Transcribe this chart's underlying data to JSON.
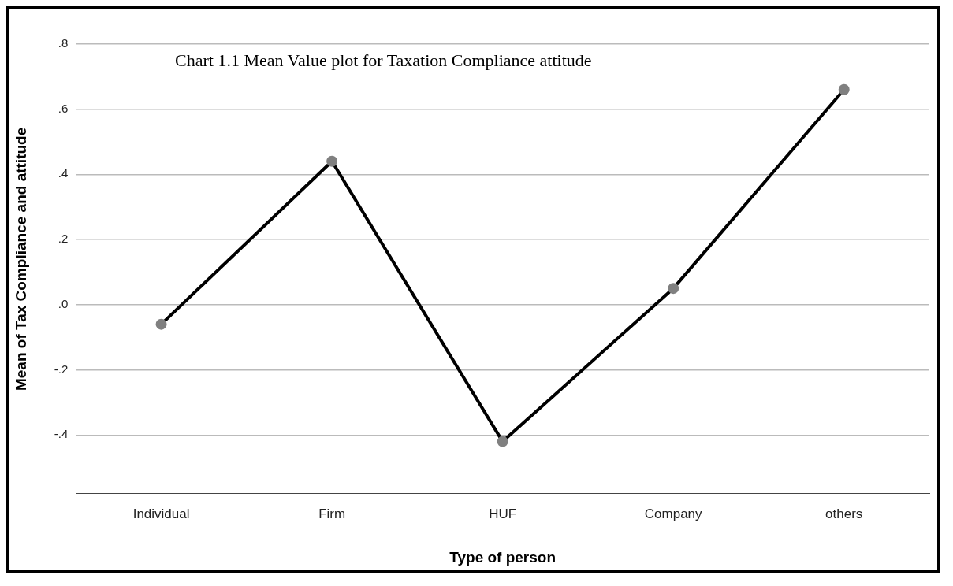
{
  "chart_data": {
    "type": "line",
    "title": "Chart 1.1 Mean Value plot for Taxation Compliance attitude",
    "xlabel": "Type of person",
    "ylabel": "Mean of Tax Compliance and attitude",
    "categories": [
      "Individual",
      "Firm",
      "HUF",
      "Company",
      "others"
    ],
    "series": [
      {
        "color": "#000000",
        "values": [
          -0.06,
          0.44,
          -0.42,
          0.05,
          0.66
        ]
      }
    ],
    "ylim": [
      -0.58,
      0.86
    ],
    "yticks": [
      {
        "value": -0.4,
        "label": "-.4"
      },
      {
        "value": -0.2,
        "label": "-.2"
      },
      {
        "value": 0,
        "label": ".0"
      },
      {
        "value": 0.2,
        "label": ".2"
      },
      {
        "value": 0.4,
        "label": ".4"
      },
      {
        "value": 0.6,
        "label": ".6"
      },
      {
        "value": 0.8,
        "label": ".8"
      }
    ],
    "grid": "y",
    "marker": "circle",
    "line_style": "solid",
    "legend": false
  }
}
